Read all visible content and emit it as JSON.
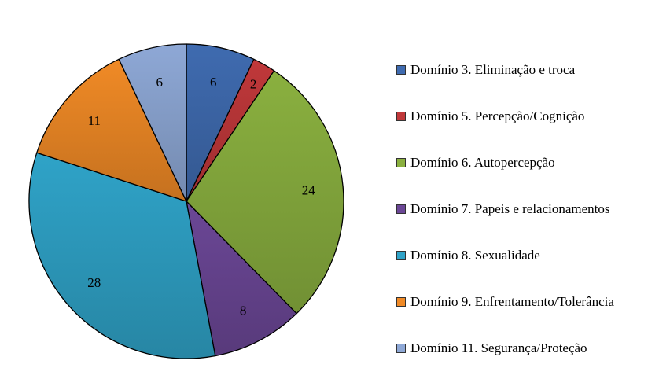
{
  "chart_data": {
    "type": "pie",
    "categories": [
      "Domínio 3. Eliminação e troca",
      "Domínio 5. Percepção/Cognição",
      "Domínio 6. Autopercepção",
      "Domínio 7. Papeis e relacionamentos",
      "Domínio 8. Sexualidade",
      "Domínio 9. Enfrentamento/Tolerância",
      "Domínio 11. Segurança/Proteção"
    ],
    "values": [
      6,
      2,
      24,
      8,
      28,
      11,
      6
    ],
    "labels": [
      "6",
      "2",
      "24",
      "8",
      "28",
      "11",
      "6"
    ],
    "colors": [
      "#3f6bb0",
      "#c0383a",
      "#8ab03f",
      "#6b4796",
      "#2fa3c8",
      "#f08a26",
      "#8ea8d6"
    ],
    "legend_position": "right",
    "start_angle_deg": 0,
    "direction": "clockwise"
  }
}
